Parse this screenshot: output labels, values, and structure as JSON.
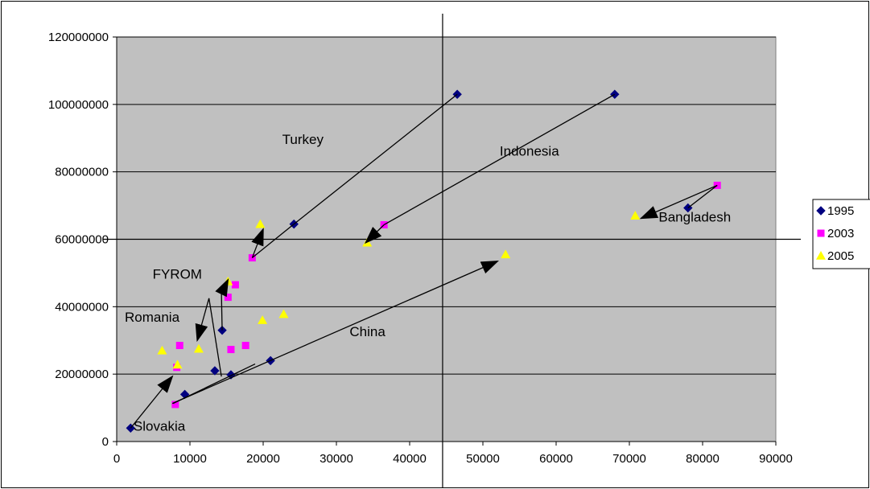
{
  "chart_data": {
    "type": "scatter",
    "title": "",
    "xlabel": "",
    "ylabel": "",
    "xlim": [
      0,
      90000
    ],
    "ylim": [
      0,
      120000000
    ],
    "x_ticks": [
      0,
      10000,
      20000,
      30000,
      40000,
      50000,
      60000,
      70000,
      80000,
      90000
    ],
    "y_ticks": [
      0,
      20000000,
      40000000,
      60000000,
      80000000,
      100000000,
      120000000
    ],
    "x_tick_labels": [
      "0",
      "10000",
      "20000",
      "30000",
      "40000",
      "50000",
      "60000",
      "70000",
      "80000",
      "90000"
    ],
    "y_tick_labels": [
      "0",
      "20000000",
      "40000000",
      "60000000",
      "80000000",
      "100000000",
      "120000000"
    ],
    "grid": "horizontal",
    "plot_background": "#c0c0c0",
    "legend_position": "right",
    "reference_lines": {
      "x": 44500,
      "y": 60000000
    },
    "series": [
      {
        "name": "1995",
        "marker": "diamond",
        "color": "#000080",
        "points": [
          [
            46500,
            103000000
          ],
          [
            68000,
            103000000
          ],
          [
            78000,
            69300000
          ],
          [
            24200,
            64500000
          ],
          [
            14400,
            33000000
          ],
          [
            21000,
            24000000
          ],
          [
            13400,
            21000000
          ],
          [
            15600,
            19800000
          ],
          [
            9300,
            14000000
          ],
          [
            1900,
            4000000
          ]
        ]
      },
      {
        "name": "2003",
        "marker": "square",
        "color": "#ff00ff",
        "points": [
          [
            82000,
            76000000
          ],
          [
            36500,
            64300000
          ],
          [
            18500,
            54500000
          ],
          [
            16200,
            46500000
          ],
          [
            15200,
            42800000
          ],
          [
            8600,
            28500000
          ],
          [
            17600,
            28500000
          ],
          [
            15600,
            27300000
          ],
          [
            8200,
            22000000
          ],
          [
            8000,
            11000000
          ]
        ]
      },
      {
        "name": "2005",
        "marker": "triangle",
        "color": "#ffff00",
        "points": [
          [
            70800,
            67000000
          ],
          [
            19600,
            64500000
          ],
          [
            34200,
            59000000
          ],
          [
            53100,
            55500000
          ],
          [
            15200,
            47500000
          ],
          [
            22800,
            37800000
          ],
          [
            19900,
            36000000
          ],
          [
            6200,
            27000000
          ],
          [
            11200,
            27500000
          ],
          [
            8300,
            22800000
          ]
        ]
      }
    ],
    "arrows": [
      {
        "from": [
          78000,
          69300000
        ],
        "to": [
          82000,
          76000000
        ],
        "head": false
      },
      {
        "from": [
          82000,
          76000000
        ],
        "to": [
          71600,
          66200000
        ],
        "head": true
      },
      {
        "from": [
          68000,
          103000000
        ],
        "to": [
          36500,
          64300000
        ],
        "head": false
      },
      {
        "from": [
          36500,
          64300000
        ],
        "to": [
          34000,
          59000000
        ],
        "head": true
      },
      {
        "from": [
          46500,
          103000000
        ],
        "to": [
          24200,
          64500000
        ],
        "head": false
      },
      {
        "from": [
          24200,
          64500000
        ],
        "to": [
          18500,
          54500000
        ],
        "head": false
      },
      {
        "from": [
          18500,
          54500000
        ],
        "to": [
          20000,
          63000000
        ],
        "head": true
      },
      {
        "from": [
          14400,
          33000000
        ],
        "to": [
          14300,
          44000000
        ],
        "head": false
      },
      {
        "from": [
          14300,
          44000000
        ],
        "to": [
          15200,
          48000000
        ],
        "head": true
      },
      {
        "from": [
          14300,
          19300000
        ],
        "to": [
          12600,
          42500000
        ],
        "head": false
      },
      {
        "from": [
          12600,
          42500000
        ],
        "to": [
          11000,
          30000000
        ],
        "head": true
      },
      {
        "from": [
          1900,
          4000000
        ],
        "to": [
          7600,
          19300000
        ],
        "head": true
      },
      {
        "from": [
          7600,
          11300000
        ],
        "to": [
          52000,
          53500000
        ],
        "head": true
      },
      {
        "from": [
          7700,
          11300000
        ],
        "to": [
          18900,
          23000000
        ],
        "head": false
      }
    ],
    "annotations": [
      {
        "text": "Turkey",
        "x": 22600,
        "y": 88300000
      },
      {
        "text": "Indonesia",
        "x": 52300,
        "y": 84800000
      },
      {
        "text": "Bangladesh",
        "x": 74000,
        "y": 65300000
      },
      {
        "text": "FYROM",
        "x": 4900,
        "y": 48300000
      },
      {
        "text": "Romania",
        "x": 1100,
        "y": 35500000
      },
      {
        "text": "China",
        "x": 31800,
        "y": 31300000
      },
      {
        "text": "Slovakia",
        "x": 2300,
        "y": 3200000
      }
    ]
  }
}
